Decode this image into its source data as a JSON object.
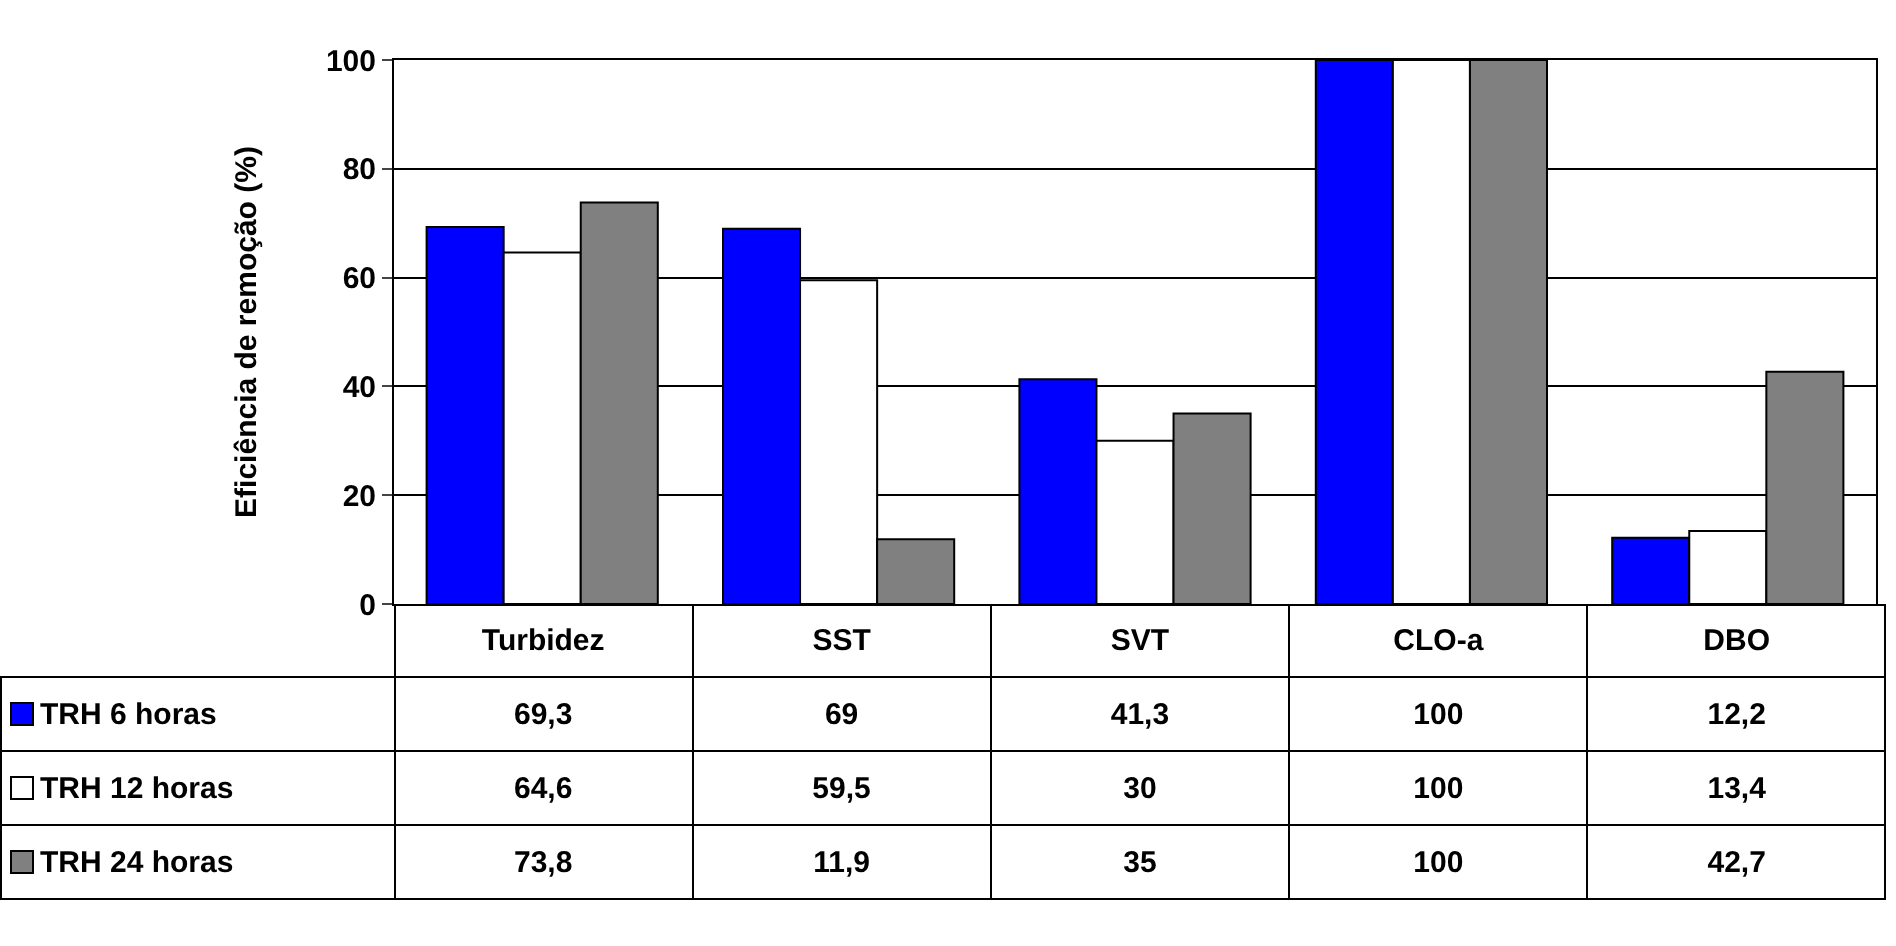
{
  "chart_data": {
    "type": "bar",
    "ylabel": "Eficiência de remoção (%)",
    "categories": [
      "Turbidez",
      "SST",
      "SVT",
      "CLO-a",
      "DBO"
    ],
    "series": [
      {
        "name": "TRH 6 horas",
        "color": "#0000ff",
        "values": [
          69.3,
          69,
          41.3,
          100,
          12.2
        ],
        "value_labels": [
          "69,3",
          "69",
          "41,3",
          "100",
          "12,2"
        ]
      },
      {
        "name": "TRH 12 horas",
        "color": "#ffffff",
        "values": [
          64.6,
          59.5,
          30,
          100,
          13.4
        ],
        "value_labels": [
          "64,6",
          "59,5",
          "30",
          "100",
          "13,4"
        ]
      },
      {
        "name": "TRH 24 horas",
        "color": "#808080",
        "values": [
          73.8,
          11.9,
          35,
          100,
          42.7
        ],
        "value_labels": [
          "73,8",
          "11,9",
          "35",
          "100",
          "42,7"
        ]
      }
    ],
    "ylim": [
      0,
      100
    ],
    "yticks": [
      0,
      20,
      40,
      60,
      80,
      100
    ],
    "grid": "y",
    "legend": "bottom left"
  }
}
